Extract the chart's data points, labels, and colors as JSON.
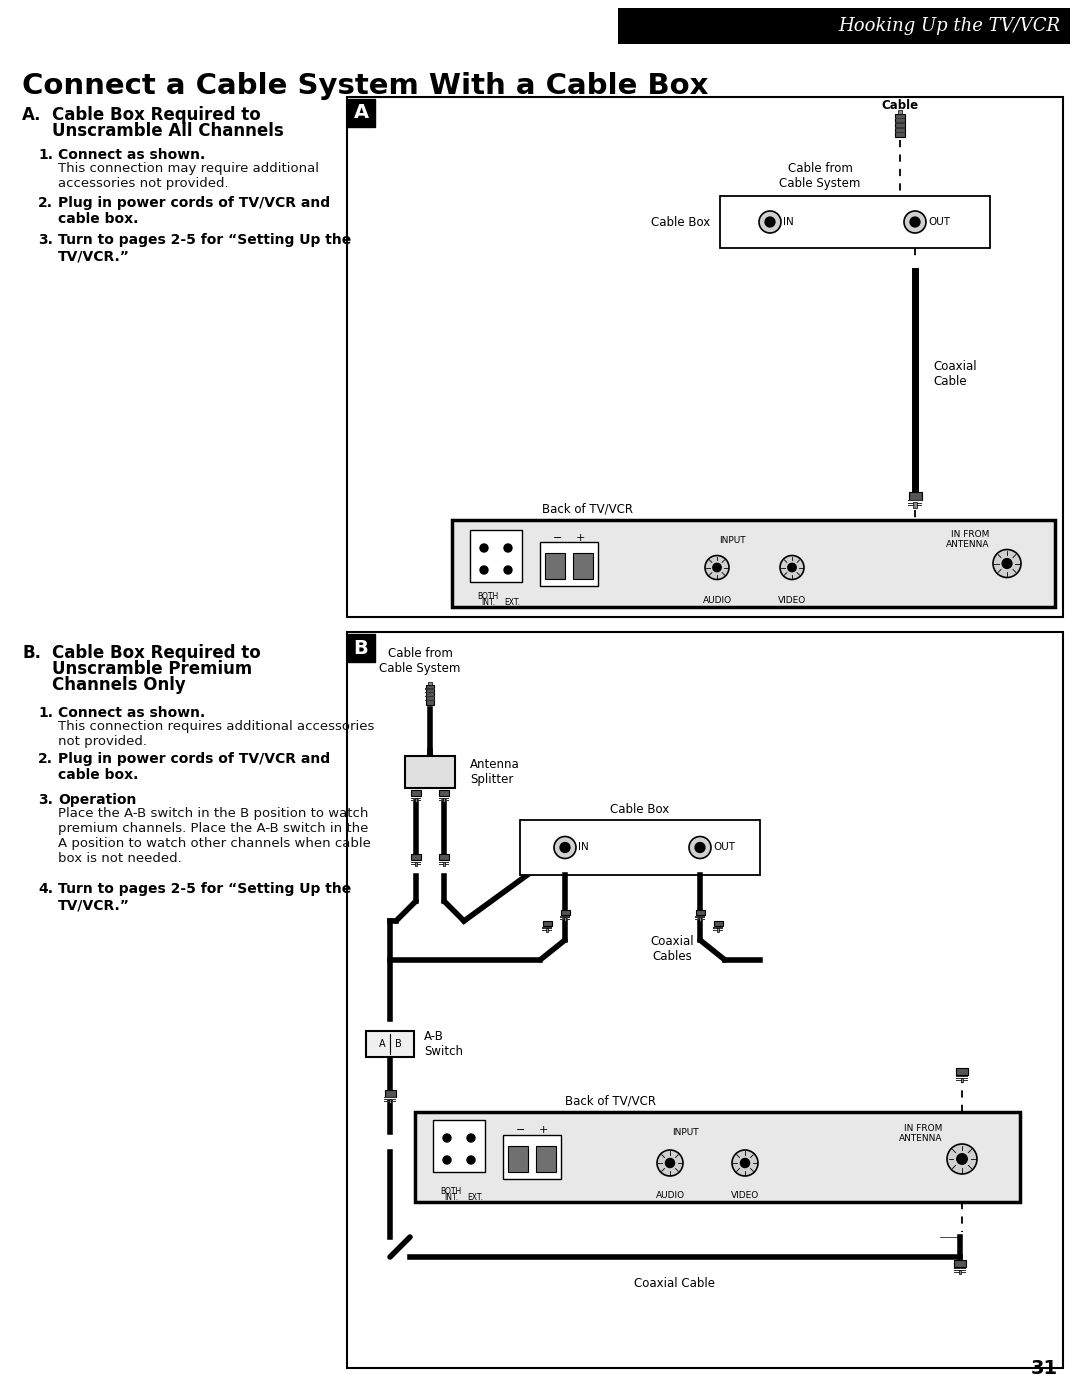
{
  "bg_color": "#ffffff",
  "header_box_color": "#000000",
  "header_text": "Hooking Up the TV/VCR",
  "header_text_color": "#ffffff",
  "main_title": "Connect a Cable System With a Cable Box",
  "page_number": "31"
}
